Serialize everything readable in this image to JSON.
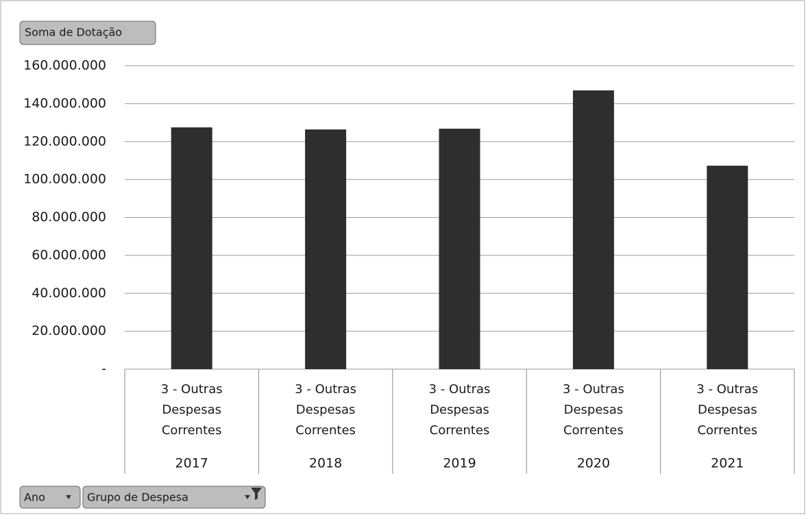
{
  "chart_data": {
    "type": "bar",
    "value_field_button": "Soma de Dotação",
    "axis_field_buttons": [
      "Ano",
      "Grupo de Despesa"
    ],
    "categories": [
      "2017",
      "2018",
      "2019",
      "2020",
      "2021"
    ],
    "subcategories": [
      "3 - Outras Despesas Correntes",
      "3 - Outras Despesas Correntes",
      "3 - Outras Despesas Correntes",
      "3 - Outras Despesas Correntes",
      "3 - Outras Despesas Correntes"
    ],
    "values": [
      127500000,
      126400000,
      126800000,
      147000000,
      107300000
    ],
    "color": "#2e2e2e",
    "ylim": [
      0,
      160000000
    ],
    "yticks": [
      {
        "value": 0,
        "label": "-"
      },
      {
        "value": 20000000,
        "label": "20.000.000"
      },
      {
        "value": 40000000,
        "label": "40.000.000"
      },
      {
        "value": 60000000,
        "label": "60.000.000"
      },
      {
        "value": 80000000,
        "label": "80.000.000"
      },
      {
        "value": 100000000,
        "label": "100.000.000"
      },
      {
        "value": 120000000,
        "label": "120.000.000"
      },
      {
        "value": 140000000,
        "label": "140.000.000"
      },
      {
        "value": 160000000,
        "label": "160.000.000"
      }
    ],
    "grid": true
  }
}
